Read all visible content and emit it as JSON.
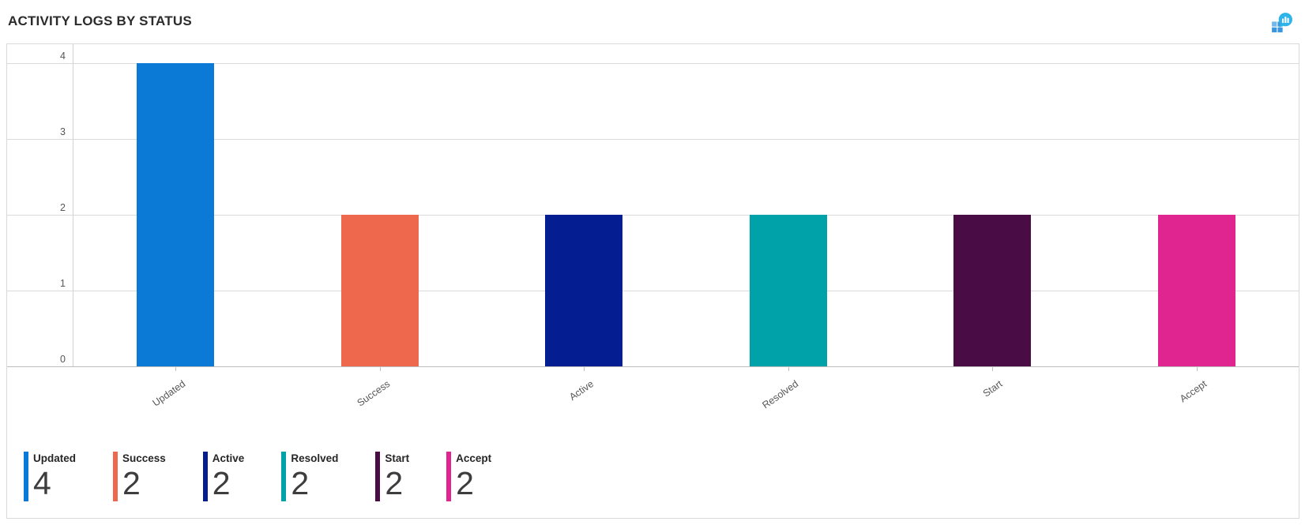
{
  "header": {
    "title": "ACTIVITY LOGS BY STATUS",
    "chart_icon": "bar-chart-bubble-icon"
  },
  "chart_data": {
    "type": "bar",
    "title": "ACTIVITY LOGS BY STATUS",
    "categories": [
      "Updated",
      "Success",
      "Active",
      "Resolved",
      "Start",
      "Accept"
    ],
    "values": [
      4,
      2,
      2,
      2,
      2,
      2
    ],
    "colors": [
      "#0b7ad6",
      "#ee684d",
      "#041d90",
      "#00a2a9",
      "#4a0c44",
      "#e02490"
    ],
    "xlabel": "",
    "ylabel": "",
    "ylim": [
      0,
      4
    ],
    "yticks": [
      4,
      3,
      2,
      1,
      0
    ],
    "grid": "horizontal",
    "legend_position": "bottom"
  },
  "legend": {
    "items": [
      {
        "label": "Updated",
        "value": "4",
        "color": "#0b7ad6"
      },
      {
        "label": "Success",
        "value": "2",
        "color": "#ee684d"
      },
      {
        "label": "Active",
        "value": "2",
        "color": "#041d90"
      },
      {
        "label": "Resolved",
        "value": "2",
        "color": "#00a2a9"
      },
      {
        "label": "Start",
        "value": "2",
        "color": "#4a0c44"
      },
      {
        "label": "Accept",
        "value": "2",
        "color": "#e02490"
      }
    ]
  }
}
